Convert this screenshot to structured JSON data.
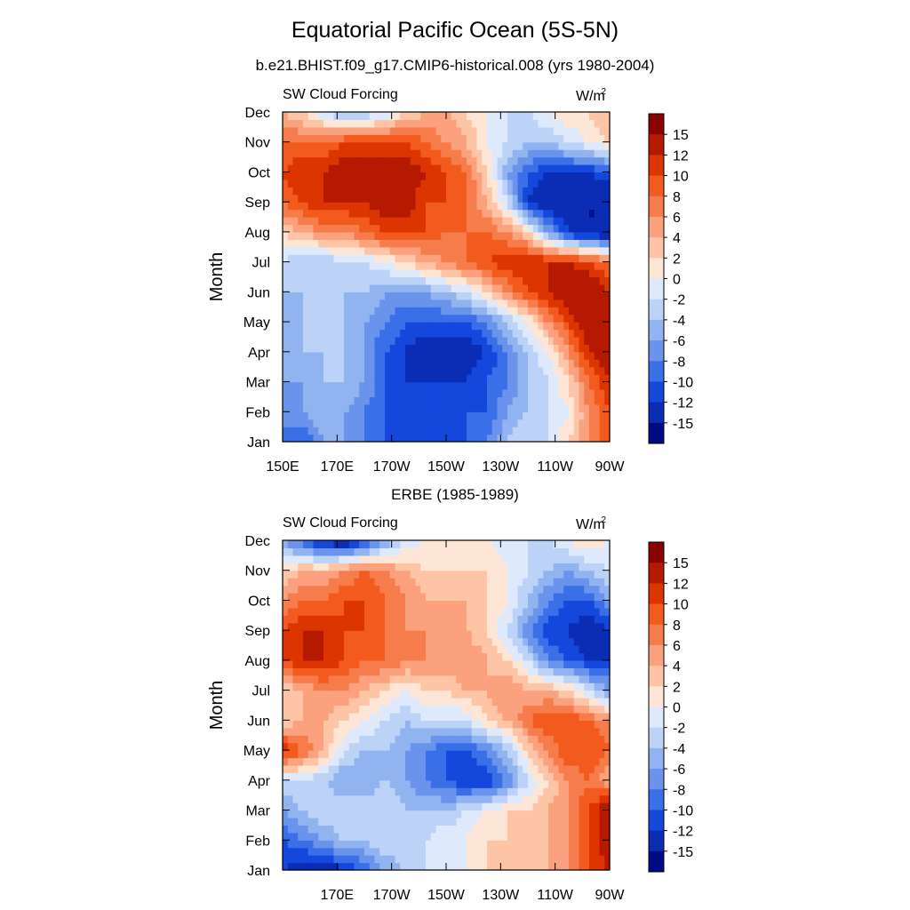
{
  "title": "Equatorial Pacific Ocean (5S-5N)",
  "subtitle": "b.e21.BHIST.f09_g17.CMIP6-historical.008 (yrs 1980-2004)",
  "colorbar": {
    "labels": [
      "15",
      "12",
      "10",
      "8",
      "6",
      "4",
      "2",
      "0",
      "-2",
      "-4",
      "-6",
      "-8",
      "-10",
      "-12",
      "-15"
    ],
    "colors": [
      "#8b0000",
      "#b51a00",
      "#dc3500",
      "#f25a1e",
      "#f77c4c",
      "#fba17e",
      "#fdc4a6",
      "#fde6d6",
      "#deeafc",
      "#bcd3f7",
      "#91b4f0",
      "#6a93ec",
      "#3a6fe8",
      "#1447dc",
      "#0b2cb5",
      "#000a85"
    ]
  },
  "chart_data": [
    {
      "type": "heatmap",
      "panel_title": "",
      "left_label": "SW Cloud Forcing",
      "units_base": "W/m",
      "units_sup": "2",
      "ylabel": "Month",
      "y_ticks": [
        "Jan",
        "Feb",
        "Mar",
        "Apr",
        "May",
        "Jun",
        "Jul",
        "Aug",
        "Sep",
        "Oct",
        "Nov",
        "Dec"
      ],
      "x_ticks": [
        "150E",
        "170E",
        "170W",
        "150W",
        "130W",
        "110W",
        "90W"
      ],
      "x_range_deg": [
        150,
        270
      ],
      "values": [
        [
          -8,
          -10,
          -6,
          -6,
          -8,
          -10,
          -12,
          -12,
          -12,
          -10,
          -8,
          -4,
          -2,
          -2,
          2,
          6,
          10
        ],
        [
          -8,
          -6,
          -4,
          -6,
          -8,
          -10,
          -10,
          -12,
          -12,
          -10,
          -10,
          -6,
          -4,
          -2,
          0,
          6,
          10
        ],
        [
          -6,
          -6,
          -4,
          -4,
          -6,
          -10,
          -12,
          -12,
          -12,
          -12,
          -10,
          -8,
          -4,
          -2,
          2,
          8,
          12
        ],
        [
          -6,
          -4,
          -4,
          -4,
          -6,
          -10,
          -12,
          -15,
          -14,
          -14,
          -12,
          -8,
          -4,
          0,
          6,
          12,
          15
        ],
        [
          -6,
          -4,
          -4,
          -4,
          -6,
          -8,
          -10,
          -10,
          -10,
          -10,
          -8,
          -4,
          0,
          6,
          10,
          15,
          15
        ],
        [
          -4,
          -4,
          -4,
          -4,
          -4,
          -6,
          -6,
          -6,
          -4,
          -2,
          2,
          6,
          10,
          12,
          15,
          15,
          12
        ],
        [
          -2,
          -4,
          -4,
          -2,
          -2,
          0,
          2,
          4,
          6,
          8,
          10,
          12,
          12,
          12,
          12,
          10,
          8
        ],
        [
          2,
          4,
          6,
          6,
          8,
          10,
          10,
          10,
          8,
          8,
          8,
          6,
          2,
          -6,
          -12,
          -15,
          -15
        ],
        [
          8,
          10,
          12,
          12,
          12,
          14,
          14,
          10,
          10,
          8,
          4,
          -2,
          -12,
          -15,
          -15,
          -15,
          -15
        ],
        [
          10,
          12,
          12,
          14,
          15,
          15,
          14,
          12,
          10,
          8,
          2,
          -6,
          -10,
          -12,
          -12,
          -12,
          -10
        ],
        [
          8,
          8,
          8,
          10,
          10,
          10,
          10,
          8,
          6,
          4,
          0,
          -2,
          -4,
          -4,
          -2,
          0,
          2
        ],
        [
          4,
          2,
          -2,
          -6,
          -4,
          -2,
          2,
          4,
          4,
          2,
          0,
          -2,
          -2,
          0,
          2,
          2,
          4
        ]
      ]
    },
    {
      "type": "heatmap",
      "panel_title": "ERBE (1985-1989)",
      "left_label": "SW Cloud Forcing",
      "units_base": "W/m",
      "units_sup": "2",
      "ylabel": "Month",
      "y_ticks": [
        "Jan",
        "Feb",
        "Mar",
        "Apr",
        "May",
        "Jun",
        "Jul",
        "Aug",
        "Sep",
        "Oct",
        "Nov",
        "Dec"
      ],
      "x_ticks": [
        "170E",
        "170W",
        "150W",
        "130W",
        "110W",
        "90W"
      ],
      "x_range_deg": [
        150,
        270
      ],
      "values": [
        [
          -12,
          -14,
          -15,
          -12,
          -10,
          -6,
          -4,
          -2,
          -2,
          0,
          2,
          2,
          4,
          4,
          6,
          10,
          12
        ],
        [
          -10,
          -8,
          -6,
          -4,
          -4,
          -2,
          -2,
          -2,
          0,
          0,
          2,
          2,
          2,
          4,
          6,
          10,
          15
        ],
        [
          -6,
          -4,
          -2,
          -2,
          -2,
          -2,
          -4,
          -4,
          -4,
          -2,
          0,
          2,
          2,
          4,
          6,
          10,
          15
        ],
        [
          -2,
          -2,
          -4,
          -6,
          -6,
          -4,
          -6,
          -8,
          -10,
          -12,
          -12,
          -8,
          -2,
          2,
          6,
          8,
          4
        ],
        [
          12,
          8,
          4,
          -2,
          -4,
          -4,
          -6,
          -8,
          -10,
          -10,
          -8,
          -4,
          2,
          6,
          10,
          10,
          8
        ],
        [
          2,
          4,
          4,
          2,
          0,
          -2,
          -4,
          -2,
          -2,
          -2,
          2,
          4,
          8,
          10,
          10,
          8,
          6
        ],
        [
          2,
          4,
          6,
          6,
          4,
          2,
          0,
          2,
          2,
          4,
          4,
          6,
          4,
          4,
          2,
          -2,
          -6
        ],
        [
          10,
          12,
          12,
          10,
          8,
          8,
          6,
          6,
          6,
          6,
          4,
          2,
          -2,
          -8,
          -10,
          -12,
          -12
        ],
        [
          10,
          12,
          12,
          10,
          10,
          8,
          6,
          6,
          4,
          4,
          2,
          -2,
          -8,
          -12,
          -12,
          -15,
          -12
        ],
        [
          6,
          8,
          8,
          10,
          10,
          8,
          6,
          4,
          4,
          4,
          2,
          0,
          -4,
          -8,
          -10,
          -10,
          -6
        ],
        [
          2,
          4,
          4,
          6,
          8,
          6,
          4,
          2,
          2,
          2,
          2,
          0,
          -2,
          -4,
          -6,
          -4,
          -2
        ],
        [
          -6,
          -10,
          -14,
          -15,
          -12,
          -6,
          -2,
          0,
          0,
          0,
          0,
          -2,
          -2,
          -2,
          0,
          2,
          0
        ]
      ]
    }
  ]
}
